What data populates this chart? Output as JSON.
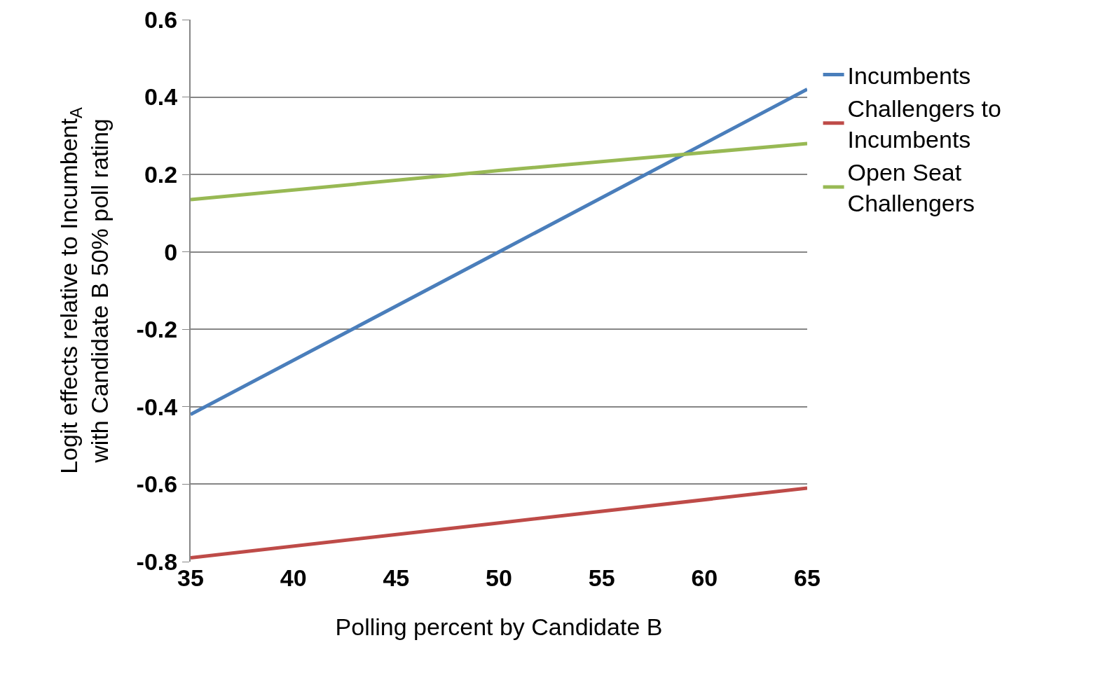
{
  "chart_data": {
    "type": "line",
    "xlabel": "Polling percent by Candidate B",
    "ylabel": "Logit effects relative to Incumbent$_{A}$\nwith Candidate B 50% poll rating",
    "x": [
      35,
      50,
      65
    ],
    "series": [
      {
        "name": "Incumbents",
        "color": "#4a7ebb",
        "values": [
          -0.42,
          0.0,
          0.42
        ]
      },
      {
        "name": "Challengers to Incumbents",
        "color": "#be4b48",
        "values": [
          -0.79,
          -0.7,
          -0.61
        ]
      },
      {
        "name": "Open Seat Challengers",
        "color": "#98b954",
        "values": [
          0.135,
          0.21,
          0.28
        ]
      }
    ],
    "xlim": [
      35,
      65
    ],
    "xticks": [
      35,
      40,
      45,
      50,
      55,
      60,
      65
    ],
    "ylim": [
      -0.8,
      0.6
    ],
    "yticks": [
      -0.8,
      -0.6,
      -0.4,
      -0.2,
      0,
      0.2,
      0.4,
      0.6
    ],
    "grid": "y",
    "legend": "right",
    "marker": "none",
    "line_style": "solid"
  }
}
